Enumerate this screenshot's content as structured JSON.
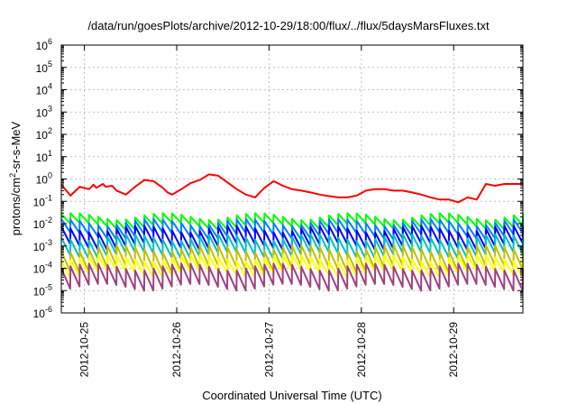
{
  "chart_data": {
    "type": "line",
    "title": "/data/run/goesPlots/archive/2012-10-29/18:00/flux/../flux/5daysMarsFluxes.txt",
    "xlabel": "Coordinated Universal Time (UTC)",
    "ylabel": {
      "pre": "protons/cm",
      "sup": "2",
      "post": "-sr-s-MeV"
    },
    "x_axis": {
      "unit": "days",
      "start": "2012-10-24 18:00",
      "range": [
        0,
        5
      ],
      "ticks": [
        {
          "label": "2012-10-25",
          "day": 0.25
        },
        {
          "label": "2012-10-26",
          "day": 1.25
        },
        {
          "label": "2012-10-27",
          "day": 2.25
        },
        {
          "label": "2012-10-28",
          "day": 3.25
        },
        {
          "label": "2012-10-29",
          "day": 4.25
        }
      ]
    },
    "y_axis": {
      "scale": "log",
      "range": [
        1e-06,
        1000000.0
      ],
      "ticks": [
        {
          "base": "10",
          "exp": "-6",
          "value": 1e-06
        },
        {
          "base": "10",
          "exp": "-5",
          "value": 1e-05
        },
        {
          "base": "10",
          "exp": "-4",
          "value": 0.0001
        },
        {
          "base": "10",
          "exp": "-3",
          "value": 0.001
        },
        {
          "base": "10",
          "exp": "-2",
          "value": 0.01
        },
        {
          "base": "10",
          "exp": "-1",
          "value": 0.1
        },
        {
          "base": "10",
          "exp": "0",
          "value": 1
        },
        {
          "base": "10",
          "exp": "1",
          "value": 10
        },
        {
          "base": "10",
          "exp": "2",
          "value": 100
        },
        {
          "base": "10",
          "exp": "3",
          "value": 1000
        },
        {
          "base": "10",
          "exp": "4",
          "value": 10000
        },
        {
          "base": "10",
          "exp": "5",
          "value": 100000
        },
        {
          "base": "10",
          "exp": "6",
          "value": 1000000
        }
      ]
    },
    "grid": true,
    "legend": "none",
    "series": [
      {
        "color": "#ff0000",
        "x": [
          0,
          0.1,
          0.2,
          0.3,
          0.35,
          0.38,
          0.45,
          0.48,
          0.55,
          0.6,
          0.7,
          0.8,
          0.9,
          1.0,
          1.1,
          1.15,
          1.2,
          1.3,
          1.4,
          1.5,
          1.6,
          1.7,
          1.8,
          1.9,
          2.0,
          2.1,
          2.15,
          2.2,
          2.3,
          2.4,
          2.5,
          2.6,
          2.7,
          2.8,
          2.9,
          3.0,
          3.1,
          3.2,
          3.3,
          3.4,
          3.5,
          3.6,
          3.7,
          3.8,
          3.9,
          4.0,
          4.1,
          4.2,
          4.3,
          4.4,
          4.5,
          4.6,
          4.7,
          4.8,
          4.9,
          5.0
        ],
        "y": [
          0.55,
          0.18,
          0.45,
          0.35,
          0.55,
          0.4,
          0.6,
          0.45,
          0.5,
          0.3,
          0.2,
          0.45,
          0.9,
          0.8,
          0.4,
          0.25,
          0.2,
          0.35,
          0.65,
          0.9,
          1.6,
          1.4,
          0.7,
          0.35,
          0.2,
          0.15,
          0.25,
          0.4,
          0.8,
          0.5,
          0.35,
          0.3,
          0.25,
          0.2,
          0.17,
          0.15,
          0.15,
          0.18,
          0.3,
          0.35,
          0.35,
          0.3,
          0.3,
          0.25,
          0.2,
          0.15,
          0.12,
          0.12,
          0.09,
          0.15,
          0.12,
          0.6,
          0.5,
          0.6,
          0.6,
          0.6
        ]
      },
      {
        "color": "#00ff00",
        "sawtooth": {
          "low": 0.008,
          "high": 0.022,
          "period": 0.1
        }
      },
      {
        "color": "#0080ff",
        "sawtooth": {
          "low": 0.003,
          "high": 0.012,
          "period": 0.1
        }
      },
      {
        "color": "#0000ff",
        "sawtooth": {
          "low": 0.001,
          "high": 0.006,
          "period": 0.1
        }
      },
      {
        "color": "#00c0c0",
        "sawtooth": {
          "low": 0.0004,
          "high": 0.0025,
          "period": 0.1
        }
      },
      {
        "color": "#c0c000",
        "sawtooth": {
          "low": 0.0001,
          "high": 0.0008,
          "period": 0.1
        }
      },
      {
        "color": "#ffff00",
        "sawtooth": {
          "low": 6e-05,
          "high": 0.0003,
          "period": 0.1
        }
      },
      {
        "color": "#a04080",
        "sawtooth": {
          "low": 1.5e-05,
          "high": 0.00012,
          "period": 0.1
        }
      }
    ]
  }
}
